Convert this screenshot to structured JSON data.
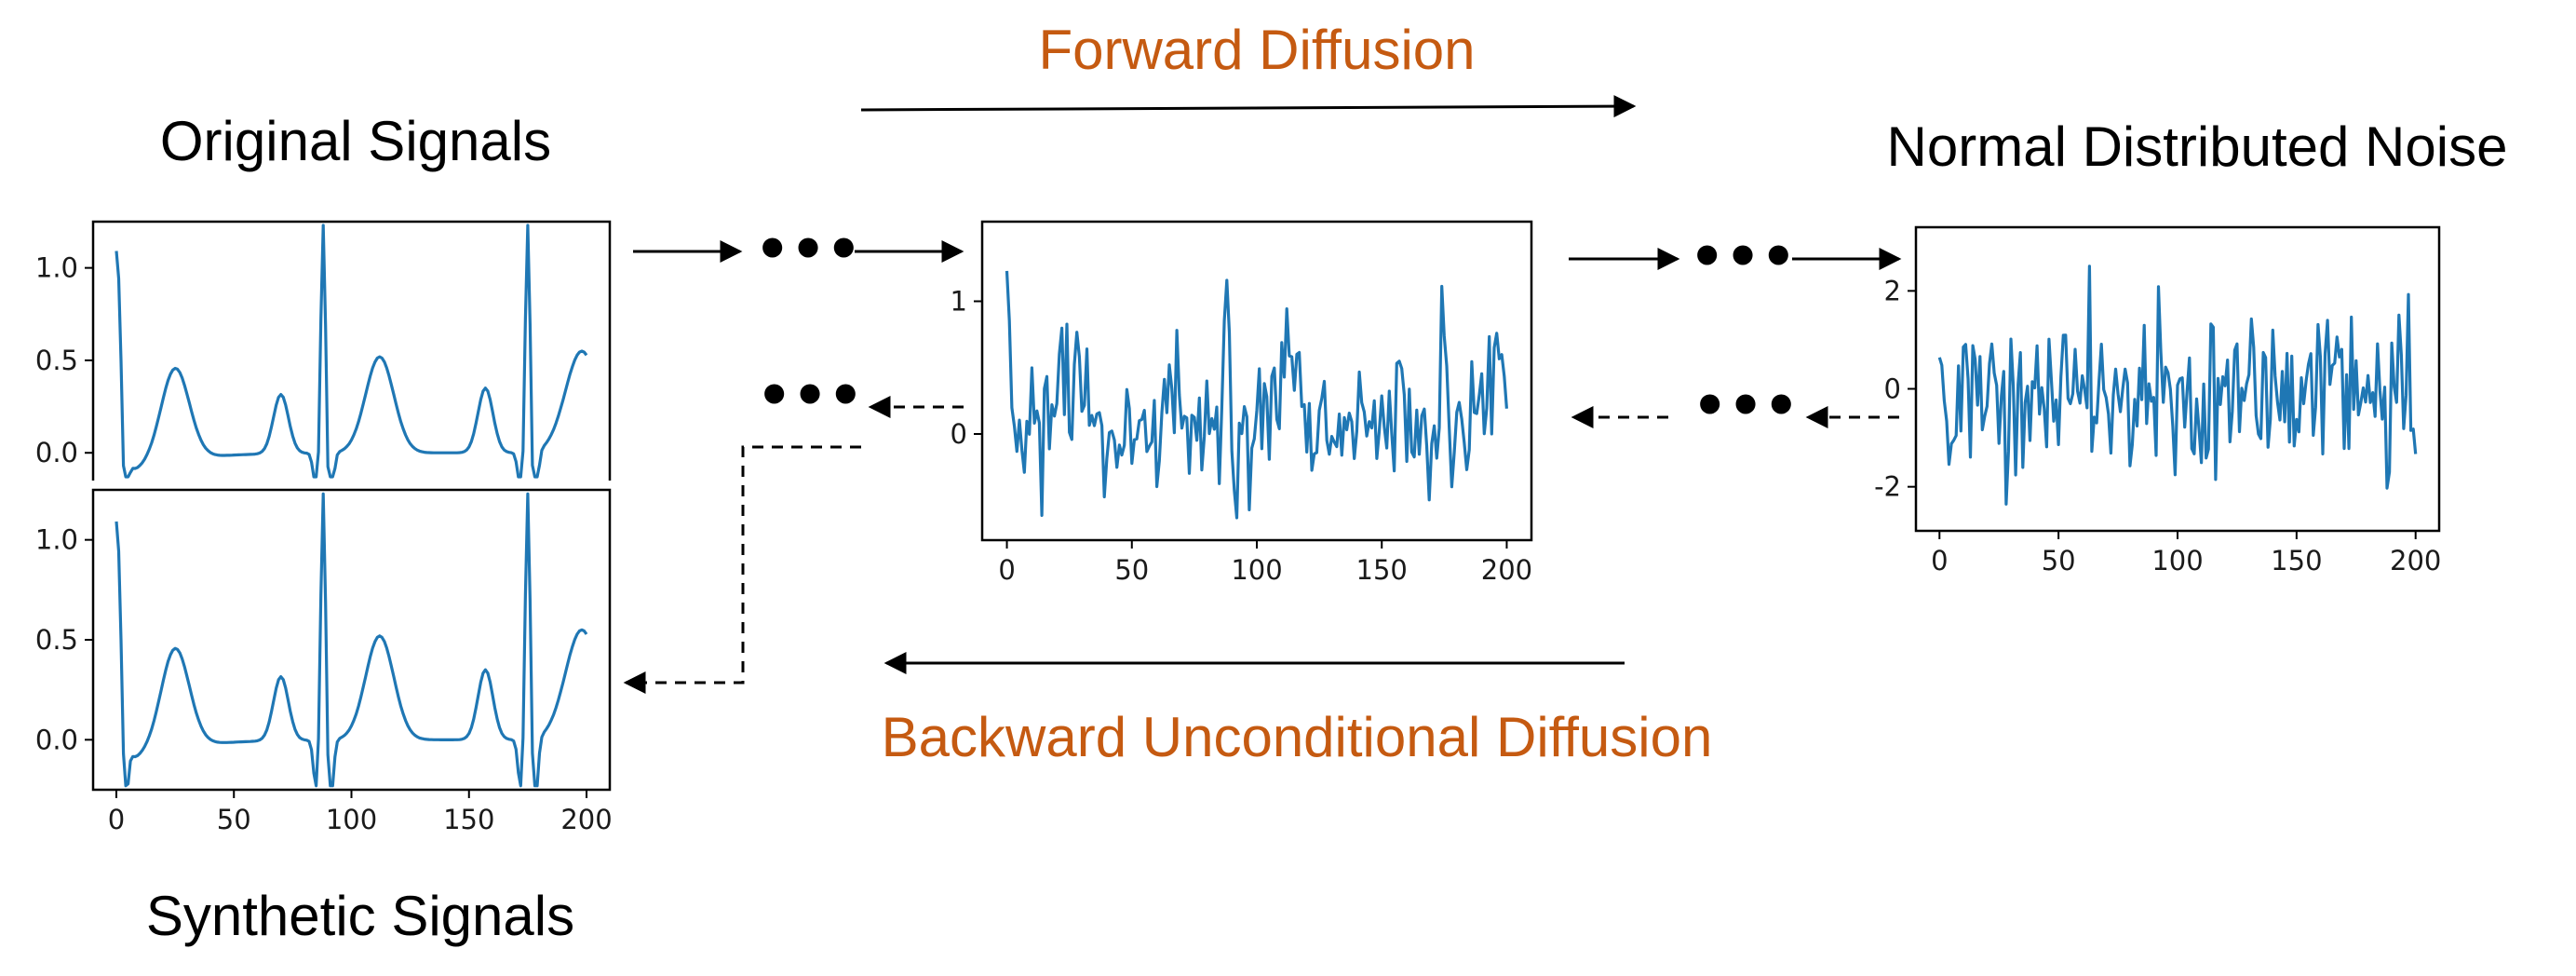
{
  "labels": {
    "original_signals": "Original Signals",
    "synthetic_signals": "Synthetic Signals",
    "normal_noise": "Normal Distributed Noise",
    "forward_diffusion": "Forward Diffusion",
    "backward_diffusion": "Backward Unconditional Diffusion",
    "ellipsis": "•••"
  },
  "colors": {
    "accent": "#c55a11",
    "signal": "#1f77b4"
  },
  "chart_data": [
    {
      "id": "original",
      "type": "line",
      "xlim": [
        0,
        200
      ],
      "ylim": [
        -0.15,
        1.25
      ],
      "yticks": [
        {
          "value": 0.0,
          "label": "0.0"
        },
        {
          "value": 0.5,
          "label": "0.5"
        },
        {
          "value": 1.0,
          "label": "1.0"
        }
      ],
      "xticks": [],
      "kind": "ecg"
    },
    {
      "id": "synthetic",
      "type": "line",
      "xlim": [
        0,
        200
      ],
      "ylim": [
        -0.25,
        1.25
      ],
      "yticks": [
        {
          "value": 0.0,
          "label": "0.0"
        },
        {
          "value": 0.5,
          "label": "0.5"
        },
        {
          "value": 1.0,
          "label": "1.0"
        }
      ],
      "xticks": [
        {
          "value": 0,
          "label": "0"
        },
        {
          "value": 50,
          "label": "50"
        },
        {
          "value": 100,
          "label": "100"
        },
        {
          "value": 150,
          "label": "150"
        },
        {
          "value": 200,
          "label": "200"
        }
      ],
      "kind": "ecg"
    },
    {
      "id": "intermediate",
      "type": "line",
      "xlim": [
        0,
        200
      ],
      "ylim": [
        -0.8,
        1.6
      ],
      "yticks": [
        {
          "value": 0,
          "label": "0"
        },
        {
          "value": 1,
          "label": "1"
        }
      ],
      "xticks": [
        {
          "value": 0,
          "label": "0"
        },
        {
          "value": 50,
          "label": "50"
        },
        {
          "value": 100,
          "label": "100"
        },
        {
          "value": 150,
          "label": "150"
        },
        {
          "value": 200,
          "label": "200"
        }
      ],
      "kind": "ecg_noisy",
      "noise_scale": 0.55
    },
    {
      "id": "noise",
      "type": "line",
      "xlim": [
        0,
        200
      ],
      "ylim": [
        -2.9,
        3.3
      ],
      "yticks": [
        {
          "value": -2,
          "label": "-2"
        },
        {
          "value": 0,
          "label": "0"
        },
        {
          "value": 2,
          "label": "2"
        }
      ],
      "xticks": [
        {
          "value": 0,
          "label": "0"
        },
        {
          "value": 50,
          "label": "50"
        },
        {
          "value": 100,
          "label": "100"
        },
        {
          "value": 150,
          "label": "150"
        },
        {
          "value": 200,
          "label": "200"
        }
      ],
      "kind": "noise"
    }
  ]
}
